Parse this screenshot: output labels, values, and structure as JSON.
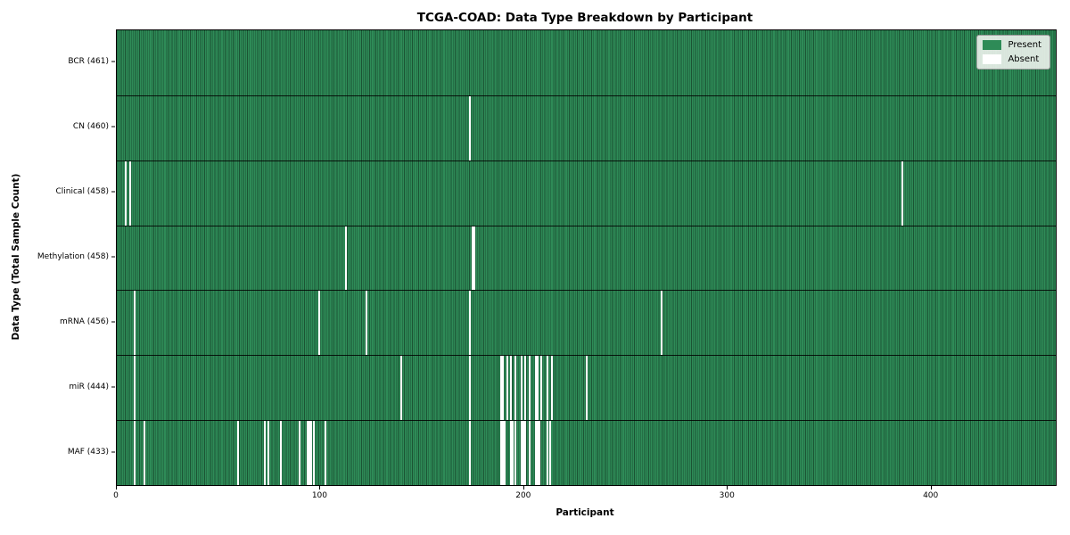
{
  "chart_data": {
    "type": "heatmap",
    "title": "TCGA-COAD: Data Type Breakdown by Participant",
    "xlabel": "Participant",
    "ylabel": "Data Type (Total Sample Count)",
    "x_ticks": [
      0,
      100,
      200,
      300,
      400
    ],
    "n_participants": 461,
    "grid": "per-participant vertical gridlines, black row separators",
    "colors": {
      "present": "#2e8b57",
      "absent": "#ffffff",
      "gridline": "rgba(12,38,24,0.55)",
      "border": "#000000",
      "legend_background": "rgba(237,242,237,0.9)"
    },
    "legend": {
      "position": "upper-right",
      "entries": [
        {
          "label": "Present",
          "color": "#2e8b57"
        },
        {
          "label": "Absent",
          "color": "#ffffff"
        }
      ]
    },
    "rows": [
      {
        "label": "BCR (461)",
        "data_type": "BCR",
        "total": 461,
        "absent_participants": []
      },
      {
        "label": "CN (460)",
        "data_type": "CN",
        "total": 460,
        "absent_participants": [
          173
        ]
      },
      {
        "label": "Clinical (458)",
        "data_type": "Clinical",
        "total": 458,
        "absent_participants": [
          4,
          6,
          385
        ]
      },
      {
        "label": "Methylation (458)",
        "data_type": "Methylation",
        "total": 458,
        "absent_participants": [
          112,
          174,
          175
        ]
      },
      {
        "label": "mRNA (456)",
        "data_type": "mRNA",
        "total": 456,
        "absent_participants": [
          8,
          99,
          122,
          173,
          267
        ]
      },
      {
        "label": "miR (444)",
        "data_type": "miR",
        "total": 444,
        "absent_participants": [
          8,
          139,
          173,
          188,
          189,
          191,
          193,
          195,
          198,
          200,
          202,
          205,
          206,
          208,
          211,
          213,
          230
        ]
      },
      {
        "label": "MAF (433)",
        "data_type": "MAF",
        "total": 433,
        "absent_participants": [
          8,
          13,
          59,
          72,
          74,
          80,
          89,
          93,
          94,
          95,
          96,
          102,
          173,
          188,
          189,
          190,
          193,
          194,
          195,
          198,
          199,
          200,
          202,
          205,
          206,
          207,
          211,
          212
        ]
      }
    ]
  }
}
